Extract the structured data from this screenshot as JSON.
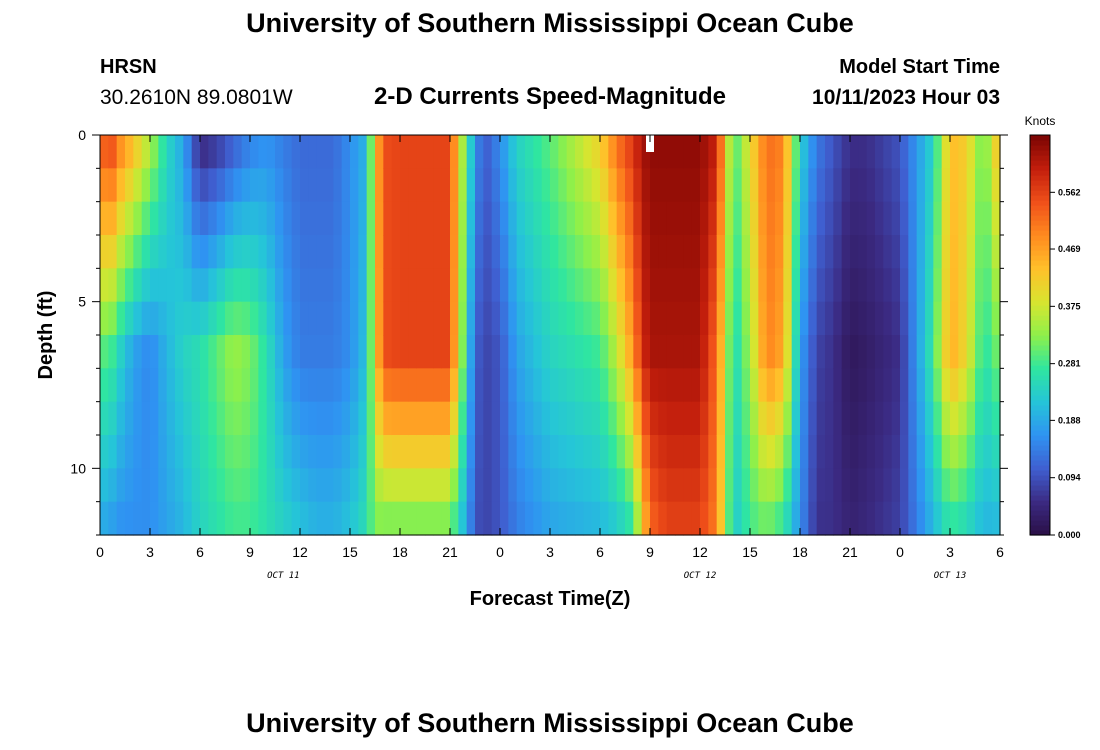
{
  "header": {
    "title": "University of Southern Mississippi Ocean Cube",
    "station": "HRSN",
    "coords": "30.2610N  89.0801W",
    "subtitle": "2-D Currents Speed-Magnitude",
    "model_start_label": "Model Start Time",
    "model_start_value": "10/11/2023 Hour 03"
  },
  "footer": {
    "title": "University of Southern Mississippi Ocean Cube"
  },
  "chart_data": {
    "type": "heatmap",
    "title": "2-D Currents Speed-Magnitude",
    "xlabel": "Forecast Time(Z)",
    "ylabel": "Depth (ft)",
    "x_range_hours": [
      0,
      54
    ],
    "y_range_ft": [
      0,
      12
    ],
    "x_tick_labels": [
      "0",
      "3",
      "6",
      "9",
      "12",
      "15",
      "18",
      "21",
      "0",
      "3",
      "6",
      "9",
      "12",
      "15",
      "18",
      "21",
      "0",
      "3",
      "6"
    ],
    "y_tick_labels": [
      "0",
      "5",
      "10"
    ],
    "y_tick_values": [
      0,
      5,
      10
    ],
    "day_labels": [
      {
        "text": "OCT 11",
        "hour": 11
      },
      {
        "text": "OCT 12",
        "hour": 36
      },
      {
        "text": "OCT 13",
        "hour": 51
      }
    ],
    "colorbar": {
      "label": "Knots",
      "min": 0.0,
      "max": 0.656,
      "ticks": [
        "0.000",
        "0.094",
        "0.188",
        "0.281",
        "0.375",
        "0.469",
        "0.562"
      ],
      "colors": [
        "#2a0f45",
        "#3b2a82",
        "#3f5fd0",
        "#2f93f2",
        "#25c5d8",
        "#2fe6a0",
        "#8ef04a",
        "#d8e52f",
        "#ffc02a",
        "#ff8a1f",
        "#f0501a",
        "#c21e0c",
        "#7a0403"
      ]
    },
    "profiles": {
      "hours": [
        0,
        0.5,
        1,
        2,
        3,
        4,
        5,
        6,
        7,
        8,
        9,
        10,
        11,
        12,
        13,
        14,
        15,
        16,
        16.5,
        17,
        18,
        21,
        22,
        22.5,
        23,
        24,
        25,
        27,
        30,
        31,
        32,
        32.5,
        33,
        34,
        36,
        37,
        38,
        39,
        40,
        41,
        42,
        43,
        44,
        45,
        46,
        48,
        50,
        51,
        52,
        53,
        54
      ],
      "surface": [
        0.5,
        0.6,
        0.52,
        0.45,
        0.36,
        0.25,
        0.18,
        0.04,
        0.06,
        0.1,
        0.14,
        0.16,
        0.14,
        0.12,
        0.12,
        0.12,
        0.16,
        0.2,
        0.42,
        0.55,
        0.56,
        0.56,
        0.28,
        0.18,
        0.1,
        0.16,
        0.24,
        0.3,
        0.42,
        0.52,
        0.58,
        0.62,
        0.64,
        0.64,
        0.64,
        0.6,
        0.28,
        0.4,
        0.52,
        0.5,
        0.24,
        0.14,
        0.1,
        0.06,
        0.06,
        0.1,
        0.24,
        0.44,
        0.42,
        0.3,
        0.46
      ],
      "mid": [
        0.28,
        0.3,
        0.25,
        0.18,
        0.15,
        0.2,
        0.24,
        0.26,
        0.3,
        0.34,
        0.32,
        0.26,
        0.18,
        0.14,
        0.14,
        0.14,
        0.16,
        0.22,
        0.4,
        0.55,
        0.56,
        0.56,
        0.24,
        0.12,
        0.08,
        0.1,
        0.18,
        0.24,
        0.28,
        0.36,
        0.48,
        0.58,
        0.62,
        0.62,
        0.62,
        0.52,
        0.24,
        0.34,
        0.5,
        0.46,
        0.18,
        0.08,
        0.06,
        0.02,
        0.03,
        0.06,
        0.28,
        0.46,
        0.4,
        0.26,
        0.32
      ],
      "bottom": [
        0.18,
        0.18,
        0.16,
        0.16,
        0.16,
        0.18,
        0.2,
        0.24,
        0.26,
        0.28,
        0.28,
        0.26,
        0.24,
        0.22,
        0.2,
        0.2,
        0.22,
        0.26,
        0.32,
        0.3,
        0.3,
        0.3,
        0.18,
        0.1,
        0.08,
        0.1,
        0.14,
        0.18,
        0.2,
        0.22,
        0.26,
        0.4,
        0.52,
        0.56,
        0.56,
        0.5,
        0.22,
        0.28,
        0.3,
        0.26,
        0.16,
        0.06,
        0.06,
        0.04,
        0.05,
        0.08,
        0.2,
        0.26,
        0.24,
        0.2,
        0.2
      ]
    },
    "marker": {
      "hour": 33.0,
      "depth_ft": 0,
      "note": "white marker at current time"
    }
  }
}
